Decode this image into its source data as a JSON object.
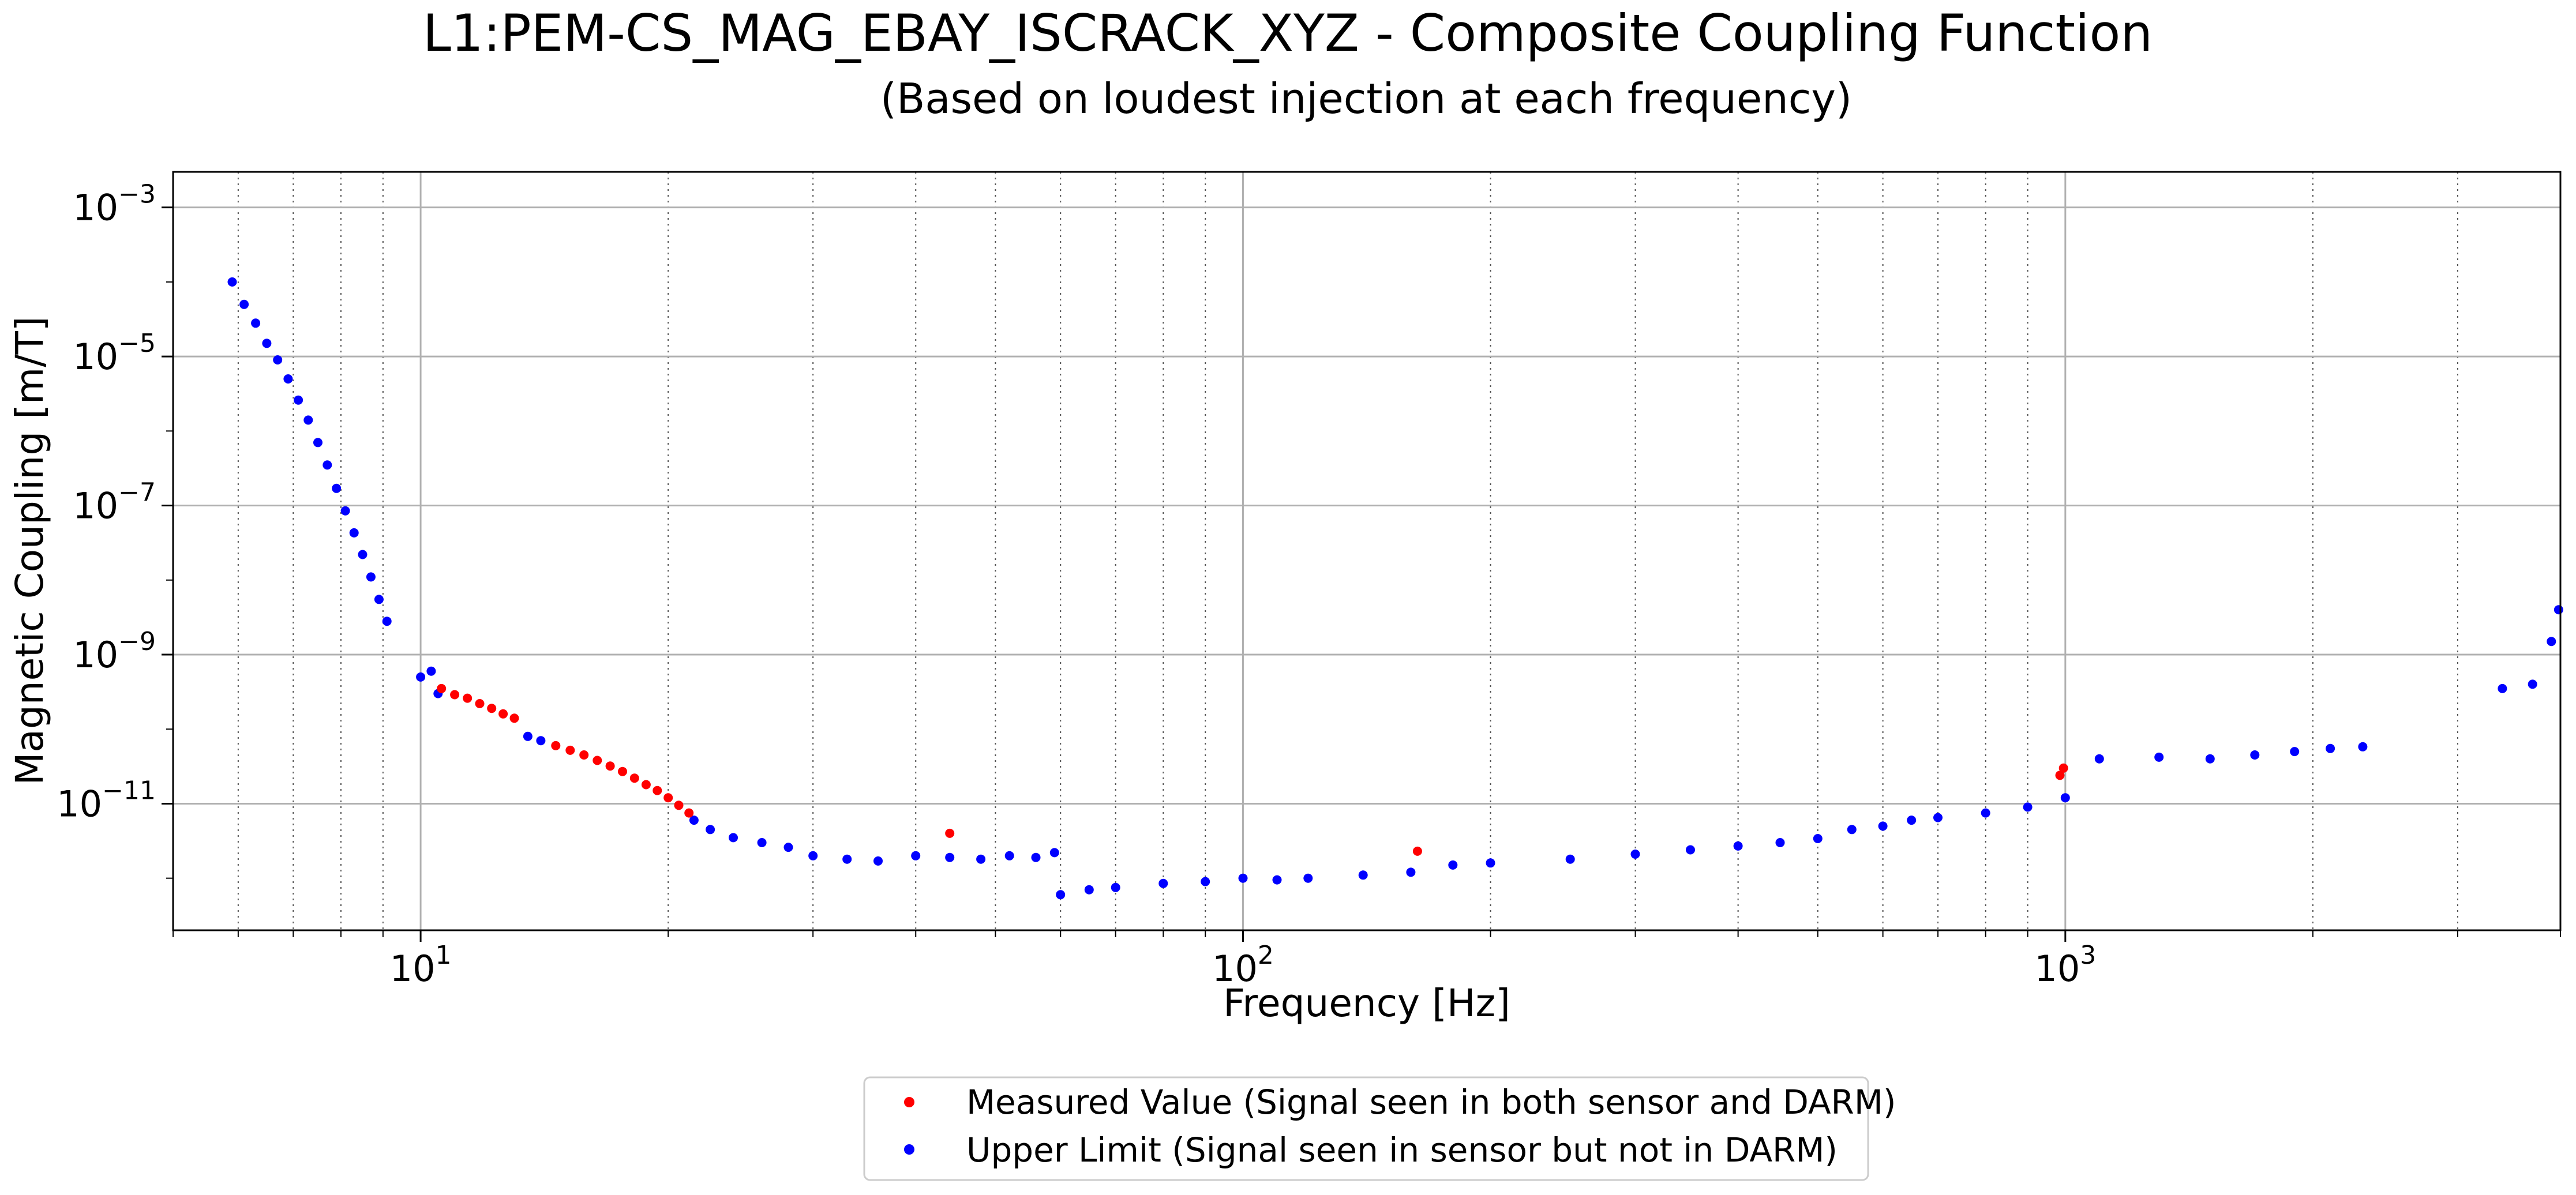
{
  "chart_data": {
    "type": "scatter",
    "title": "L1:PEM-CS_MAG_EBAY_ISCRACK_XYZ - Composite Coupling Function",
    "subtitle": "(Based on loudest injection at each frequency)",
    "xlabel": "Frequency [Hz]",
    "ylabel": "Magnetic Coupling [m/T]",
    "x_scale": "log",
    "y_scale": "log",
    "xlim": [
      5,
      4000
    ],
    "ylim": [
      2e-13,
      0.003
    ],
    "x_ticks": [
      {
        "value": 10,
        "base": "10",
        "exp": "1"
      },
      {
        "value": 100,
        "base": "10",
        "exp": "2"
      },
      {
        "value": 1000,
        "base": "10",
        "exp": "3"
      }
    ],
    "y_ticks": [
      {
        "value": 0.001,
        "base": "10",
        "exp": "−3"
      },
      {
        "value": 1e-05,
        "base": "10",
        "exp": "−5"
      },
      {
        "value": 1e-07,
        "base": "10",
        "exp": "−7"
      },
      {
        "value": 1e-09,
        "base": "10",
        "exp": "−9"
      },
      {
        "value": 1e-11,
        "base": "10",
        "exp": "−11"
      }
    ],
    "grid": "major solid, minor dotted (x)",
    "legend_position": "bottom-center",
    "series": [
      {
        "name": "Measured Value (Signal seen in both sensor and DARM)",
        "color": "#ff0000",
        "points": [
          [
            10.6,
            3.5e-10
          ],
          [
            11.0,
            2.9e-10
          ],
          [
            11.4,
            2.6e-10
          ],
          [
            11.8,
            2.2e-10
          ],
          [
            12.2,
            1.9e-10
          ],
          [
            12.6,
            1.6e-10
          ],
          [
            13.0,
            1.4e-10
          ],
          [
            14.6,
            6e-11
          ],
          [
            15.2,
            5.2e-11
          ],
          [
            15.8,
            4.5e-11
          ],
          [
            16.4,
            3.8e-11
          ],
          [
            17.0,
            3.2e-11
          ],
          [
            17.6,
            2.7e-11
          ],
          [
            18.2,
            2.2e-11
          ],
          [
            18.8,
            1.8e-11
          ],
          [
            19.4,
            1.5e-11
          ],
          [
            20.0,
            1.2e-11
          ],
          [
            20.6,
            9.5e-12
          ],
          [
            21.2,
            7.5e-12
          ],
          [
            44.0,
            4e-12
          ],
          [
            163,
            2.3e-12
          ],
          [
            985,
            2.4e-11
          ],
          [
            995,
            3e-11
          ]
        ]
      },
      {
        "name": "Upper Limit (Signal seen in sensor but not in DARM)",
        "color": "#0000ff",
        "points": [
          [
            5.9,
            0.0001
          ],
          [
            6.1,
            5e-05
          ],
          [
            6.3,
            2.8e-05
          ],
          [
            6.5,
            1.5e-05
          ],
          [
            6.7,
            9e-06
          ],
          [
            6.9,
            5e-06
          ],
          [
            7.1,
            2.6e-06
          ],
          [
            7.3,
            1.4e-06
          ],
          [
            7.5,
            7e-07
          ],
          [
            7.7,
            3.5e-07
          ],
          [
            7.9,
            1.7e-07
          ],
          [
            8.1,
            8.5e-08
          ],
          [
            8.3,
            4.3e-08
          ],
          [
            8.5,
            2.2e-08
          ],
          [
            8.7,
            1.1e-08
          ],
          [
            8.9,
            5.5e-09
          ],
          [
            9.1,
            2.8e-09
          ],
          [
            10.0,
            5e-10
          ],
          [
            10.3,
            6e-10
          ],
          [
            10.5,
            3e-10
          ],
          [
            13.5,
            8e-11
          ],
          [
            14.0,
            7e-11
          ],
          [
            21.5,
            6e-12
          ],
          [
            22.5,
            4.5e-12
          ],
          [
            24,
            3.5e-12
          ],
          [
            26,
            3e-12
          ],
          [
            28,
            2.6e-12
          ],
          [
            30,
            2e-12
          ],
          [
            33,
            1.8e-12
          ],
          [
            36,
            1.7e-12
          ],
          [
            40,
            2e-12
          ],
          [
            44,
            1.9e-12
          ],
          [
            48,
            1.8e-12
          ],
          [
            52,
            2e-12
          ],
          [
            56,
            1.9e-12
          ],
          [
            59,
            2.2e-12
          ],
          [
            60,
            6e-13
          ],
          [
            65,
            7e-13
          ],
          [
            70,
            7.5e-13
          ],
          [
            80,
            8.5e-13
          ],
          [
            90,
            9e-13
          ],
          [
            100,
            1e-12
          ],
          [
            110,
            9.5e-13
          ],
          [
            120,
            1e-12
          ],
          [
            140,
            1.1e-12
          ],
          [
            160,
            1.2e-12
          ],
          [
            180,
            1.5e-12
          ],
          [
            200,
            1.6e-12
          ],
          [
            250,
            1.8e-12
          ],
          [
            300,
            2.1e-12
          ],
          [
            350,
            2.4e-12
          ],
          [
            400,
            2.7e-12
          ],
          [
            450,
            3e-12
          ],
          [
            500,
            3.4e-12
          ],
          [
            550,
            4.5e-12
          ],
          [
            600,
            5e-12
          ],
          [
            650,
            6e-12
          ],
          [
            700,
            6.5e-12
          ],
          [
            800,
            7.5e-12
          ],
          [
            900,
            9e-12
          ],
          [
            1000,
            1.2e-11
          ],
          [
            1100,
            4e-11
          ],
          [
            1300,
            4.2e-11
          ],
          [
            1500,
            4e-11
          ],
          [
            1700,
            4.5e-11
          ],
          [
            1900,
            5e-11
          ],
          [
            2100,
            5.5e-11
          ],
          [
            2300,
            5.8e-11
          ],
          [
            3400,
            3.5e-10
          ],
          [
            3700,
            4e-10
          ],
          [
            3900,
            1.5e-09
          ],
          [
            3980,
            4e-09
          ]
        ]
      }
    ]
  }
}
